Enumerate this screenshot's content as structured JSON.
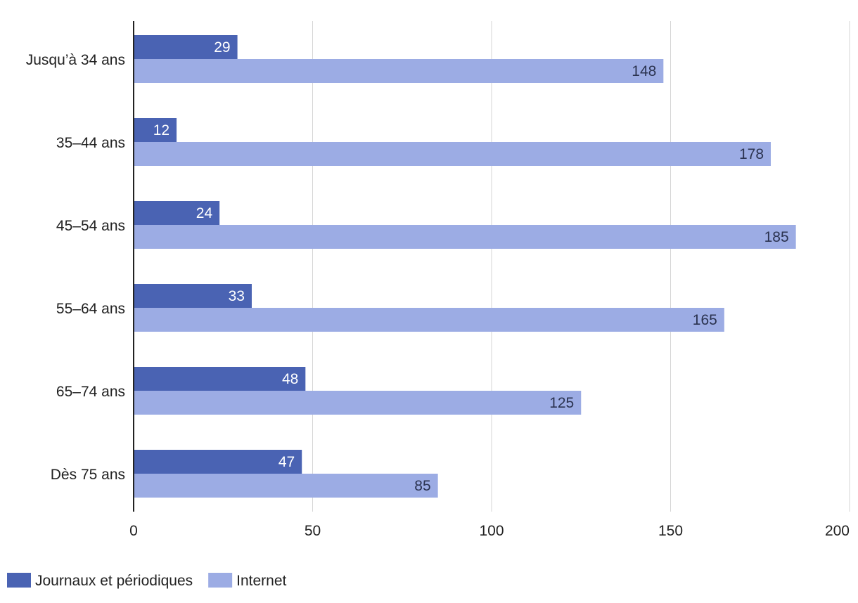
{
  "chart_data": {
    "type": "bar",
    "orientation": "horizontal",
    "title": "",
    "xlabel": "",
    "ylabel": "",
    "categories": [
      "Jusqu’à 34 ans",
      "35–44 ans",
      "45–54 ans",
      "55–64 ans",
      "65–74 ans",
      "Dès 75 ans"
    ],
    "series": [
      {
        "name": "Journaux et périodiques",
        "values": [
          29,
          12,
          24,
          33,
          48,
          47
        ],
        "color": "#4a63b3",
        "label_color": "#ffffff"
      },
      {
        "name": "Internet",
        "values": [
          148,
          178,
          185,
          165,
          125,
          85
        ],
        "color": "#9cace4",
        "label_color": "#2b3350"
      }
    ],
    "xlim": [
      0,
      200
    ],
    "ticks": [
      0,
      50,
      100,
      150,
      200
    ],
    "grid": true,
    "legend": "bottom-left",
    "data_labels": true
  }
}
